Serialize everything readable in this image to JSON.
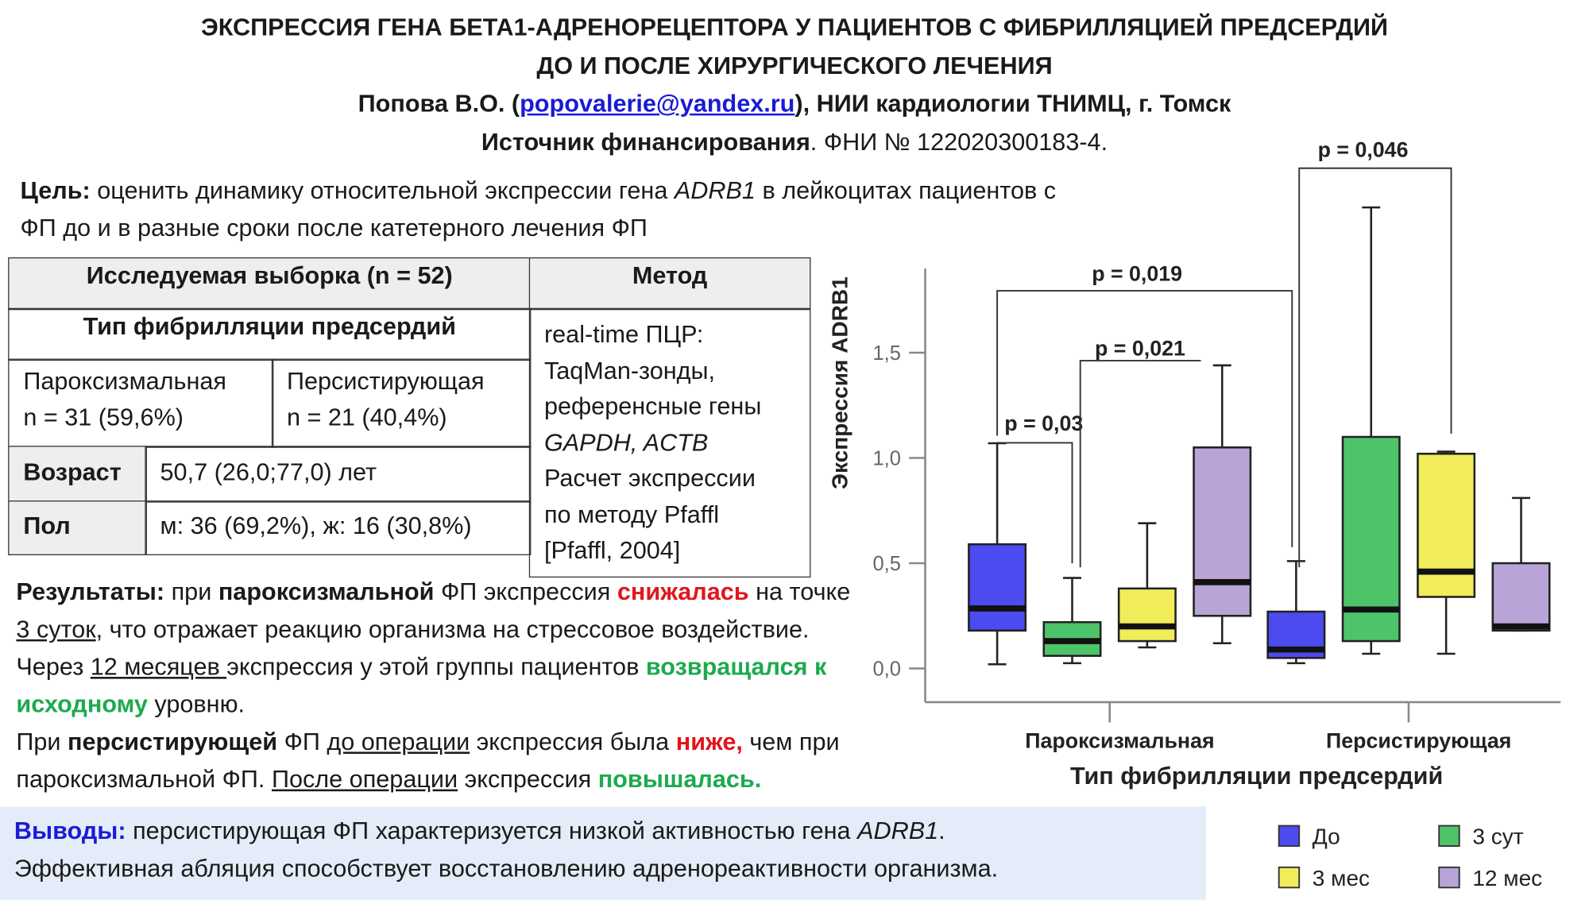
{
  "header": {
    "title_line1": "ЭКСПРЕССИЯ ГЕНА БЕТА1-АДРЕНОРЕЦЕПТОРА У ПАЦИЕНТОВ С ФИБРИЛЛЯЦИЕЙ ПРЕДСЕРДИЙ",
    "title_line2": "ДО И ПОСЛЕ ХИРУРГИЧЕСКОГО ЛЕЧЕНИЯ",
    "author": "Попова В.О. (",
    "email": "popovalerie@yandex.ru",
    "affiliation": "), НИИ кардиологии ТНИМЦ, г. Томск",
    "funding_label": "Источник финансирования",
    "funding_text": ". ФНИ № 122020300183-4."
  },
  "aim": {
    "label": "Цель:",
    "text1": " оценить динамику относительной экспрессии гена ",
    "gene": "ADRB1",
    "text2": " в лейкоцитах пациентов с ФП до и в разные сроки после катетерного лечения ФП"
  },
  "table": {
    "header": [
      "Исследуемая выборка (n = 52)",
      "Метод"
    ],
    "subheader": "Тип фибрилляции предсердий",
    "types": [
      [
        "Пароксизмальная",
        "n = 31 (59,6%)"
      ],
      [
        "Персистирующая",
        "n = 21 (40,4%)"
      ]
    ],
    "rows": [
      [
        "Возраст",
        "50,7 (26,0;77,0) лет"
      ],
      [
        "Пол",
        "м: 36 (69,2%), ж: 16 (30,8%)"
      ]
    ],
    "method": [
      "real-time ПЦР:",
      "TaqMan-зонды,",
      "референсные гены",
      "GAPDH, ACTB",
      "Расчет экспрессии",
      "по методу Pfaffl",
      "[Pfaffl, 2004]"
    ]
  },
  "results": {
    "paragraphs": [
      [
        {
          "text": "Результаты:",
          "style": "bold"
        },
        {
          "text": " при "
        },
        {
          "text": "пароксизмальной",
          "style": "bold"
        },
        {
          "text": " ФП экспрессия "
        },
        {
          "text": "снижалась",
          "style": "red"
        },
        {
          "text": " на точке "
        },
        {
          "text": "3 суток",
          "style": "underline"
        },
        {
          "text": ", что отражает реакцию организма на стрессовое воздействие. Через "
        },
        {
          "text": "12 месяцев ",
          "style": "underline"
        },
        {
          "text": "экспрессия у этой группы пациентов "
        },
        {
          "text": "возвращался к исходному",
          "style": "green"
        },
        {
          "text": " уровню."
        }
      ],
      [
        {
          "text": "При "
        },
        {
          "text": "персистирующей",
          "style": "bold"
        },
        {
          "text": " ФП "
        },
        {
          "text": "до операции",
          "style": "underline"
        },
        {
          "text": " экспрессия была "
        },
        {
          "text": "ниже,",
          "style": "red"
        },
        {
          "text": " чем при пароксизмальной ФП. "
        },
        {
          "text": "После операции",
          "style": "underline"
        },
        {
          "text": " экспрессия "
        },
        {
          "text": "повышалась.",
          "style": "green"
        }
      ]
    ]
  },
  "conclusions": {
    "label": "Выводы:",
    "text1": " персистирующая ФП характеризуется  низкой активностью гена ",
    "gene": "ADRB1",
    "text2": ".",
    "line2": "Эффективная абляция способствует восстановлению адренореактивности организма."
  },
  "chart_data": {
    "type": "box",
    "ylabel": "Экспрессия ADRB1",
    "xlabel": "Тип фибрилляции предсердий",
    "categories": [
      "Пароксизмальная",
      "Персистирующая"
    ],
    "ylim": [
      -0.16,
      1.9
    ],
    "yticks": [
      {
        "value": 0,
        "label": "0,0"
      },
      {
        "value": 0.5,
        "label": "0,5"
      },
      {
        "value": 1,
        "label": "1,0"
      },
      {
        "value": 1.5,
        "label": "1,5"
      }
    ],
    "series": [
      {
        "name": "До",
        "color": "#4b4bf0",
        "values": [
          {
            "min": 0.02,
            "q1": 0.18,
            "median": 0.285,
            "q3": 0.59,
            "max": 1.07
          },
          {
            "min": 0.025,
            "q1": 0.05,
            "median": 0.09,
            "q3": 0.27,
            "max": 0.51
          }
        ]
      },
      {
        "name": "3 сут",
        "color": "#4ec46a",
        "values": [
          {
            "min": 0.025,
            "q1": 0.06,
            "median": 0.13,
            "q3": 0.22,
            "max": 0.43
          },
          {
            "min": 0.07,
            "q1": 0.13,
            "median": 0.28,
            "q3": 1.1,
            "max": 2.19
          }
        ]
      },
      {
        "name": "3 мес",
        "color": "#f0ec5a",
        "values": [
          {
            "min": 0.1,
            "q1": 0.13,
            "median": 0.2,
            "q3": 0.38,
            "max": 0.69
          },
          {
            "min": 0.07,
            "q1": 0.34,
            "median": 0.46,
            "q3": 1.02,
            "max": 1.03
          }
        ]
      },
      {
        "name": "12 мес",
        "color": "#b8a4d6",
        "values": [
          {
            "min": 0.12,
            "q1": 0.25,
            "median": 0.41,
            "q3": 1.05,
            "max": 1.44
          },
          {
            "min": 0.18,
            "q1": 0.18,
            "median": 0.2,
            "q3": 0.5,
            "max": 0.81
          }
        ]
      }
    ],
    "annotations": [
      "p = 0,03",
      "p = 0,021",
      "p = 0,019",
      "p = 0,046"
    ]
  }
}
